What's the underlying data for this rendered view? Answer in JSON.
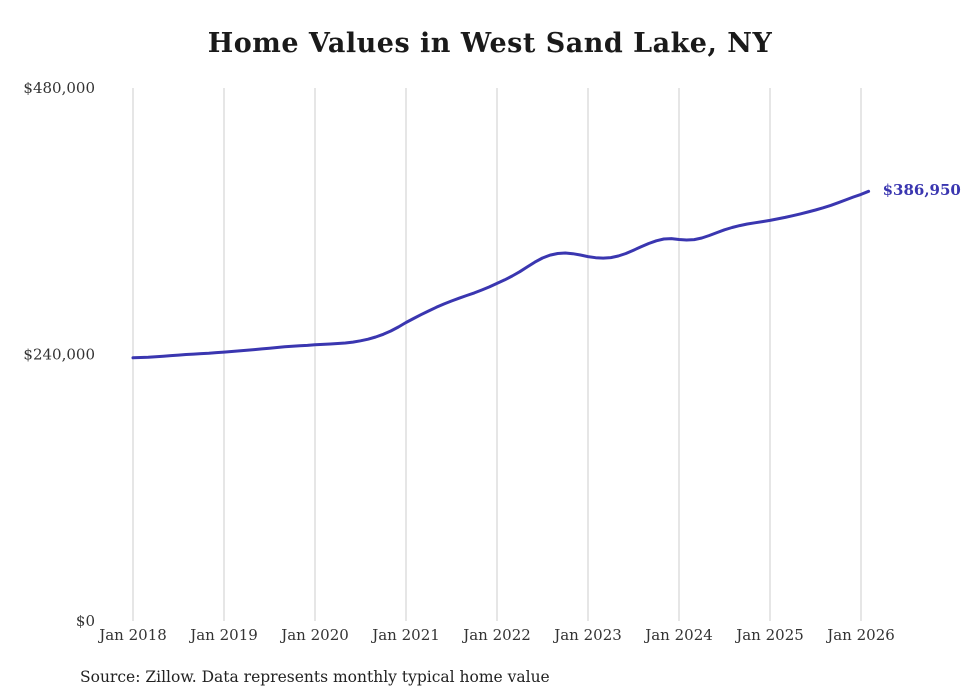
{
  "title": "Home Values in West Sand Lake, NY",
  "source_note": "Source: Zillow. Data represents monthly typical home value",
  "colors": {
    "line": "#3a36b0",
    "grid": "#cccccc",
    "title_text": "#1a1a1a",
    "axis_text": "#333333",
    "end_label_text": "#3a36b0"
  },
  "chart_data": {
    "type": "line",
    "title": "Home Values in West Sand Lake, NY",
    "x_start": "Jan 2018",
    "x_interval": "monthly",
    "x_ticks": [
      "Jan 2018",
      "Jan 2019",
      "Jan 2020",
      "Jan 2021",
      "Jan 2022",
      "Jan 2023",
      "Jan 2024",
      "Jan 2025",
      "Jan 2026"
    ],
    "y_ticks": [
      {
        "value": 0,
        "label": "$0"
      },
      {
        "value": 240000,
        "label": "$240,000"
      },
      {
        "value": 480000,
        "label": "$480,000"
      }
    ],
    "ylim": [
      0,
      480000
    ],
    "grid": "vertical-only",
    "legend": "none",
    "end_value_label": "$386,950",
    "series": [
      {
        "name": "Typical home value",
        "values": [
          237000,
          237300,
          237600,
          238000,
          238500,
          239000,
          239500,
          240000,
          240400,
          240800,
          241200,
          241700,
          242200,
          242700,
          243200,
          243800,
          244400,
          245000,
          245700,
          246300,
          246900,
          247400,
          247800,
          248200,
          248700,
          249100,
          249500,
          249900,
          250400,
          251200,
          252300,
          253800,
          255800,
          258200,
          261200,
          264800,
          268800,
          272400,
          275900,
          279300,
          282500,
          285500,
          288200,
          290700,
          293100,
          295500,
          298100,
          300900,
          304000,
          307200,
          310700,
          314600,
          318900,
          323200,
          326900,
          329500,
          331000,
          331400,
          330800,
          329600,
          328200,
          327200,
          326800,
          327300,
          328700,
          331000,
          333900,
          337000,
          340000,
          342400,
          344000,
          344400,
          343600,
          343100,
          343500,
          344900,
          347200,
          349800,
          352300,
          354400,
          356100,
          357500,
          358600,
          359700,
          360800,
          362100,
          363500,
          365000,
          366600,
          368300,
          370100,
          372100,
          374300,
          376700,
          379200,
          381800,
          384200,
          386950
        ]
      }
    ]
  }
}
